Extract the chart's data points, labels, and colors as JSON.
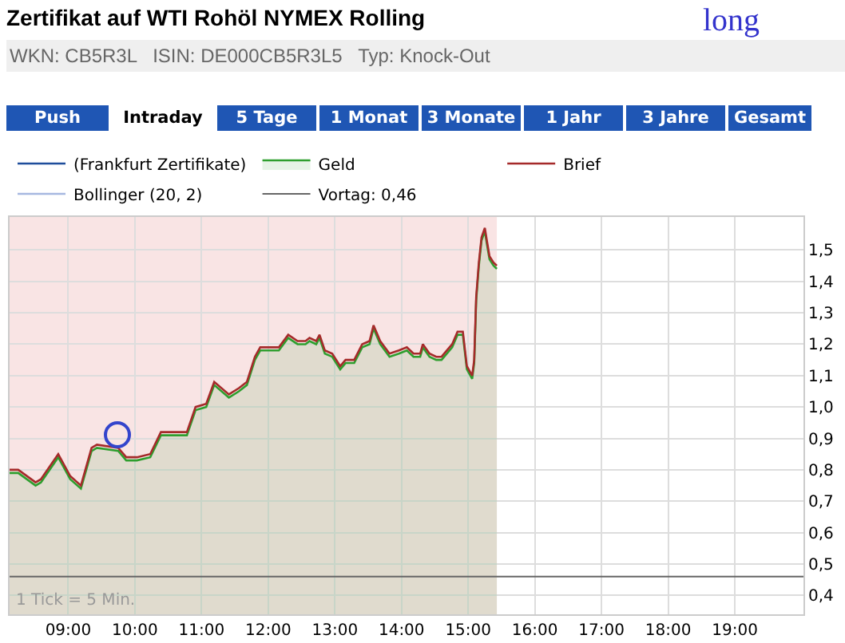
{
  "chart_data": {
    "type": "line",
    "title": "Zertifikat auf WTI Rohöl NYMEX Rolling",
    "subtitle": "WKN: CB5R3L   ISIN: DE000CB5R3L5   Typ: Knock-Out",
    "annotations": [
      "long",
      "1 Tick = 5 Min.",
      "Push",
      "Intraday",
      "5 Tage",
      "1 Monat",
      "3 Monate",
      "1 Jahr",
      "3 Jahre",
      "Gesamt"
    ],
    "x": [
      8.12,
      8.25,
      8.51,
      8.59,
      8.85,
      9.03,
      9.19,
      9.35,
      9.43,
      9.75,
      9.87,
      10.03,
      10.23,
      10.39,
      10.59,
      10.78,
      10.91,
      11.07,
      11.19,
      11.41,
      11.56,
      11.68,
      11.8,
      11.88,
      12.16,
      12.3,
      12.44,
      12.56,
      12.62,
      12.72,
      12.77,
      12.85,
      12.96,
      13.08,
      13.16,
      13.29,
      13.41,
      13.52,
      13.58,
      13.68,
      13.82,
      13.96,
      14.08,
      14.18,
      14.28,
      14.32,
      14.42,
      14.52,
      14.6,
      14.76,
      14.84,
      14.92,
      14.98,
      15.06,
      15.09,
      15.12,
      15.16,
      15.2,
      15.25,
      15.28,
      15.32,
      15.38,
      15.43
    ],
    "series": [
      {
        "name": "(Frankfurt Zertifikate)",
        "color": "#1f4e9c",
        "values": [
          null,
          null,
          null,
          null,
          null,
          null,
          null,
          null,
          null,
          null,
          null,
          null,
          null,
          null,
          null,
          null,
          null,
          null,
          null,
          null,
          null,
          null,
          null,
          null,
          null,
          null,
          null,
          null,
          null,
          null,
          null,
          null,
          null,
          null,
          null,
          null,
          null,
          null,
          null,
          null,
          null,
          null,
          null,
          null,
          null,
          null,
          null,
          null,
          null,
          null,
          null,
          null,
          null,
          null,
          null,
          null,
          null,
          null,
          null,
          null,
          null,
          null,
          null
        ]
      },
      {
        "name": "Geld",
        "type": "area",
        "color": "#2e9e2e",
        "values": [
          0.79,
          0.79,
          0.75,
          0.76,
          0.84,
          0.77,
          0.74,
          0.86,
          0.87,
          0.86,
          0.83,
          0.83,
          0.84,
          0.91,
          0.91,
          0.91,
          0.99,
          1.0,
          1.07,
          1.03,
          1.05,
          1.07,
          1.15,
          1.18,
          1.18,
          1.22,
          1.2,
          1.2,
          1.21,
          1.2,
          1.22,
          1.17,
          1.16,
          1.12,
          1.14,
          1.14,
          1.19,
          1.2,
          1.25,
          1.2,
          1.16,
          1.17,
          1.18,
          1.16,
          1.16,
          1.19,
          1.16,
          1.15,
          1.15,
          1.19,
          1.23,
          1.23,
          1.12,
          1.09,
          1.14,
          1.34,
          1.45,
          1.53,
          1.56,
          1.52,
          1.47,
          1.45,
          1.44
        ]
      },
      {
        "name": "Brief",
        "color": "#a52a2a",
        "values": [
          0.8,
          0.8,
          0.76,
          0.77,
          0.85,
          0.78,
          0.75,
          0.87,
          0.88,
          0.87,
          0.84,
          0.84,
          0.85,
          0.92,
          0.92,
          0.92,
          1.0,
          1.01,
          1.08,
          1.04,
          1.06,
          1.08,
          1.16,
          1.19,
          1.19,
          1.23,
          1.21,
          1.21,
          1.22,
          1.21,
          1.23,
          1.18,
          1.17,
          1.13,
          1.15,
          1.15,
          1.2,
          1.21,
          1.26,
          1.21,
          1.17,
          1.18,
          1.19,
          1.17,
          1.17,
          1.2,
          1.17,
          1.16,
          1.16,
          1.2,
          1.24,
          1.24,
          1.13,
          1.1,
          1.15,
          1.35,
          1.46,
          1.54,
          1.57,
          1.53,
          1.48,
          1.46,
          1.45
        ]
      },
      {
        "name": "Bollinger (20, 2)",
        "color": "#a6b8e0",
        "values": [
          null,
          null,
          null,
          null,
          null,
          null,
          null,
          null,
          null,
          null,
          null,
          null,
          null,
          null,
          null,
          null,
          null,
          null,
          null,
          null,
          null,
          null,
          null,
          null,
          null,
          null,
          null,
          null,
          null,
          null,
          null,
          null,
          null,
          null,
          null,
          null,
          null,
          null,
          null,
          null,
          null,
          null,
          null,
          null,
          null,
          null,
          null,
          null,
          null,
          null,
          null,
          null,
          null,
          null,
          null,
          null,
          null,
          null,
          null,
          null,
          null,
          null,
          null
        ]
      }
    ],
    "ref_lines": [
      {
        "axis": "y",
        "value": 0.46,
        "label": "Vortag: 0,46",
        "color": "#666666"
      }
    ],
    "bands": [
      {
        "axis": "x",
        "from": 8.12,
        "to": 15.43,
        "color": "#f9e4e4"
      }
    ],
    "xlim": [
      8.12,
      20.03
    ],
    "ylim": [
      0.34,
      1.605
    ],
    "xticks": [
      {
        "value": 9,
        "label": "09:00"
      },
      {
        "value": 10,
        "label": "10:00"
      },
      {
        "value": 11,
        "label": "11:00"
      },
      {
        "value": 12,
        "label": "12:00"
      },
      {
        "value": 13,
        "label": "13:00"
      },
      {
        "value": 14,
        "label": "14:00"
      },
      {
        "value": 15,
        "label": "15:00"
      },
      {
        "value": 16,
        "label": "16:00"
      },
      {
        "value": 17,
        "label": "17:00"
      },
      {
        "value": 18,
        "label": "18:00"
      },
      {
        "value": 19,
        "label": "19:00"
      }
    ],
    "yticks": [
      {
        "value": 0.4,
        "label": "0,4"
      },
      {
        "value": 0.5,
        "label": "0,5"
      },
      {
        "value": 0.6,
        "label": "0,6"
      },
      {
        "value": 0.7,
        "label": "0,7"
      },
      {
        "value": 0.8,
        "label": "0,8"
      },
      {
        "value": 0.9,
        "label": "0,9"
      },
      {
        "value": 1.0,
        "label": "1,0"
      },
      {
        "value": 1.1,
        "label": "1,1"
      },
      {
        "value": 1.2,
        "label": "1,2"
      },
      {
        "value": 1.3,
        "label": "1,3"
      },
      {
        "value": 1.4,
        "label": "1,4"
      },
      {
        "value": 1.5,
        "label": "1,5"
      }
    ],
    "grid": true,
    "legend": "top left",
    "marker": "none",
    "line_style": "solid"
  }
}
